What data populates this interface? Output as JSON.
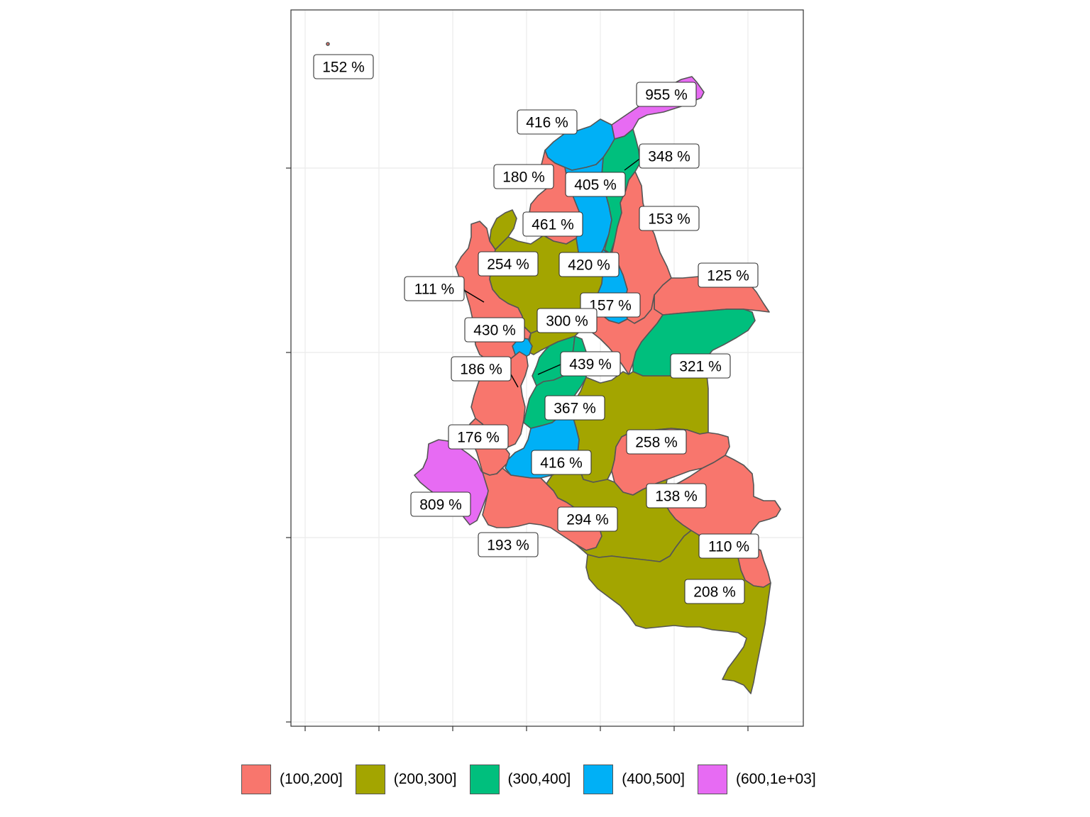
{
  "map": {
    "legend": [
      {
        "label": "(100,200]",
        "color": "#F8766D"
      },
      {
        "label": "(200,300]",
        "color": "#A3A500"
      },
      {
        "label": "(300,400]",
        "color": "#00BF7D"
      },
      {
        "label": "(400,500]",
        "color": "#00B0F6"
      },
      {
        "label": "(600,1e+03]",
        "color": "#E76BF3"
      }
    ],
    "labels": [
      {
        "id": "san-andres",
        "text": "152 %",
        "value": 152
      },
      {
        "id": "la-guajira",
        "text": "955 %",
        "value": 955
      },
      {
        "id": "atlantico",
        "text": "416 %",
        "value": 416
      },
      {
        "id": "magdalena",
        "text": "348 %",
        "value": 348
      },
      {
        "id": "bolivar",
        "text": "180 %",
        "value": 180
      },
      {
        "id": "cesar-north",
        "text": "405 %",
        "value": 405
      },
      {
        "id": "norte-de-santander",
        "text": "153 %",
        "value": 153
      },
      {
        "id": "sucre",
        "text": "461 %",
        "value": 461
      },
      {
        "id": "antioquia",
        "text": "254 %",
        "value": 254
      },
      {
        "id": "cesar",
        "text": "420 %",
        "value": 420
      },
      {
        "id": "arauca",
        "text": "125 %",
        "value": 125
      },
      {
        "id": "choco-north",
        "text": "111 %",
        "value": 111
      },
      {
        "id": "santander",
        "text": "157 %",
        "value": 157
      },
      {
        "id": "boyaca",
        "text": "300 %",
        "value": 300
      },
      {
        "id": "risaralda",
        "text": "430 %",
        "value": 430
      },
      {
        "id": "casanare",
        "text": "321 %",
        "value": 321
      },
      {
        "id": "quindio",
        "text": "439 %",
        "value": 439
      },
      {
        "id": "choco",
        "text": "186 %",
        "value": 186
      },
      {
        "id": "tolima",
        "text": "367 %",
        "value": 367
      },
      {
        "id": "valle",
        "text": "176 %",
        "value": 176
      },
      {
        "id": "meta",
        "text": "258 %",
        "value": 258
      },
      {
        "id": "huila",
        "text": "416 %",
        "value": 416
      },
      {
        "id": "narino",
        "text": "809 %",
        "value": 809
      },
      {
        "id": "vichada",
        "text": "138 %",
        "value": 138
      },
      {
        "id": "caqueta",
        "text": "294 %",
        "value": 294
      },
      {
        "id": "putumayo",
        "text": "193 %",
        "value": 193
      },
      {
        "id": "guainia",
        "text": "110 %",
        "value": 110
      },
      {
        "id": "amazonas",
        "text": "208 %",
        "value": 208
      }
    ]
  }
}
